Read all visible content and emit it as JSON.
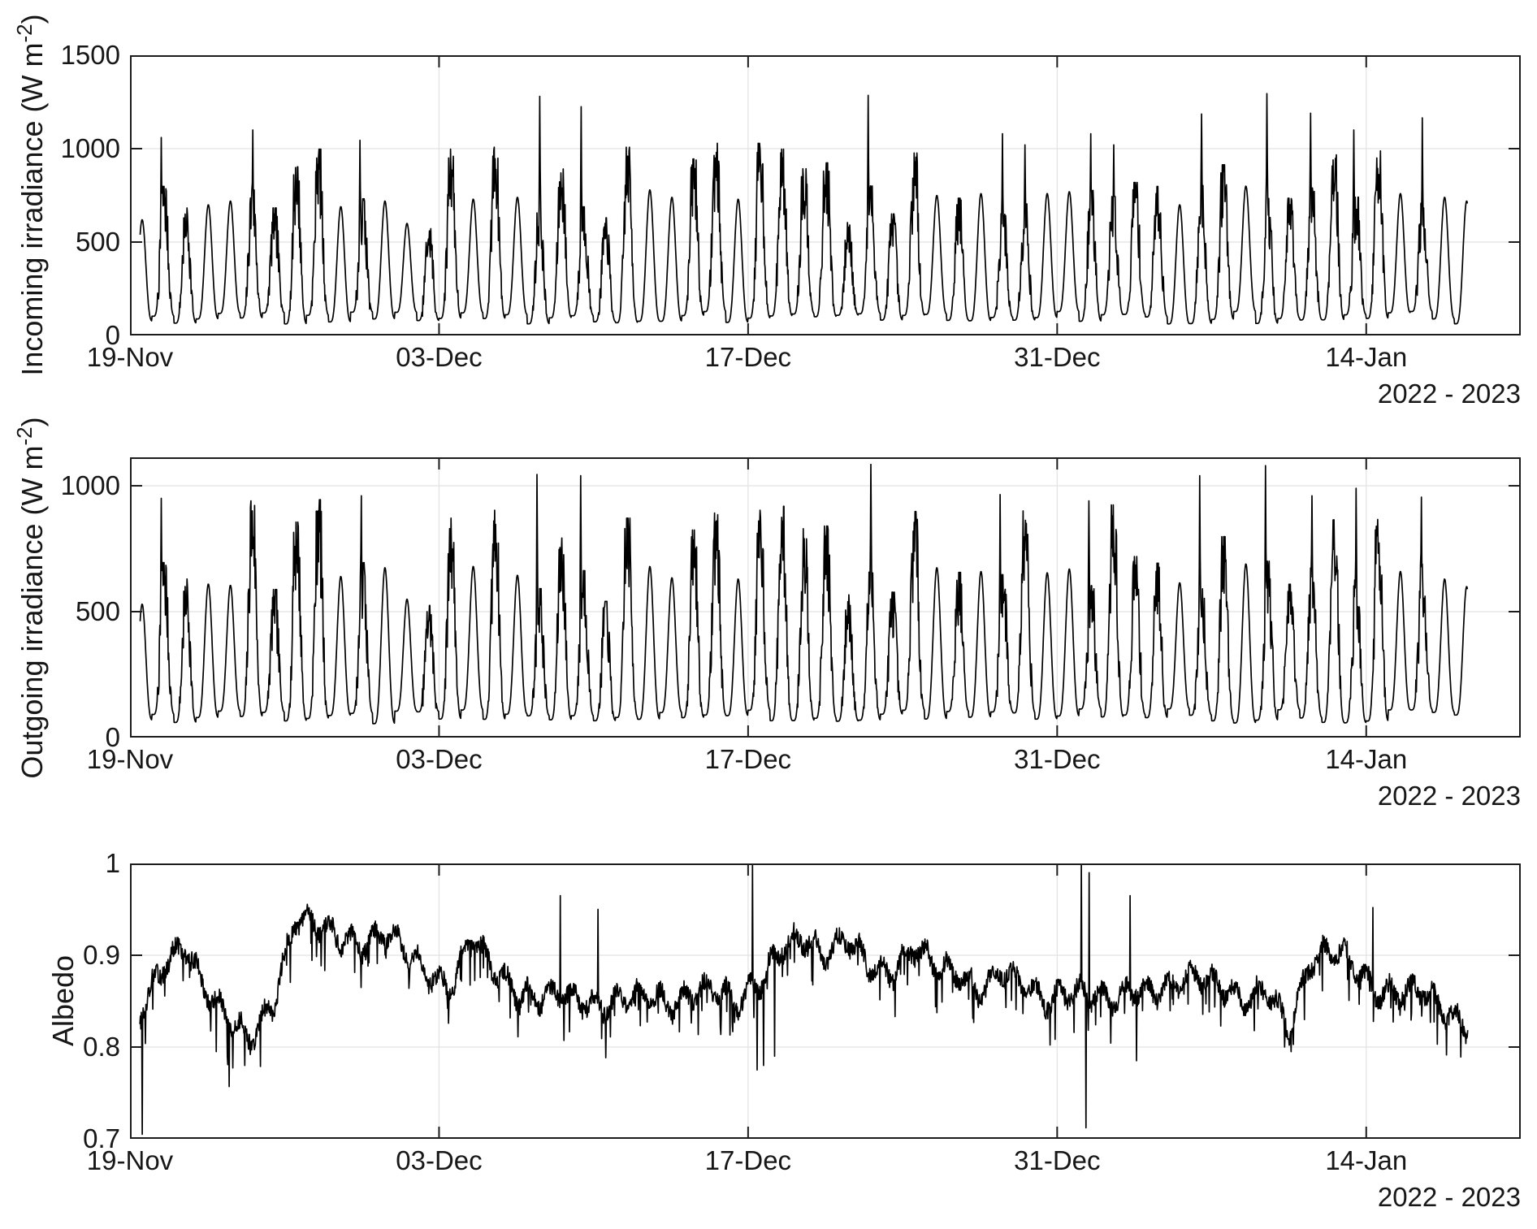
{
  "figure": {
    "background": "#ffffff",
    "axis_color": "#1c1c1c",
    "grid_color": "#e2e2e2",
    "line_color": "#000000",
    "text_color": "#171717"
  },
  "chart_data": [
    {
      "type": "line",
      "panel": "incoming-irradiance",
      "ylabel_prefix": "Incoming irradiance (W m",
      "ylabel_sup": "-2",
      "ylabel_suffix": ")",
      "xlabel_secondary": "2022 - 2023",
      "ylim": [
        0,
        1500
      ],
      "ytick_values": [
        0,
        500,
        1000,
        1500
      ],
      "ytick_labels": [
        "0",
        "500",
        "1000",
        "1500"
      ],
      "x_ticklabels": [
        "19-Nov",
        "03-Dec",
        "17-Dec",
        "31-Dec",
        "14-Jan"
      ],
      "x_tick_days": [
        0,
        14,
        28,
        42,
        56
      ],
      "xlim_days": [
        0,
        63
      ],
      "data_start_day": 0.45,
      "data_end_day": 60.6,
      "grid": true,
      "legend": "none",
      "diurnal_min_range_wm2": [
        60,
        130
      ],
      "daily_peak_wm2": [
        620,
        1060,
        650,
        700,
        720,
        1100,
        650,
        860,
        950,
        690,
        1045,
        720,
        600,
        560,
        950,
        730,
        960,
        740,
        1280,
        870,
        1225,
        600,
        960,
        780,
        740,
        900,
        980,
        730,
        980,
        950,
        850,
        880,
        580,
        1285,
        620,
        930,
        750,
        700,
        760,
        1080,
        1020,
        760,
        770,
        1080,
        1020,
        780,
        760,
        700,
        1185,
        870,
        800,
        1295,
        700,
        1190,
        940,
        1100,
        950,
        760,
        1165,
        740,
        720
      ],
      "cloudy_day": [
        0,
        1,
        1,
        0,
        0,
        1,
        1,
        1,
        1,
        0,
        1,
        0,
        0,
        1,
        1,
        0,
        1,
        0,
        1,
        1,
        1,
        1,
        1,
        0,
        0,
        1,
        1,
        0,
        1,
        1,
        1,
        1,
        1,
        1,
        1,
        1,
        0,
        1,
        0,
        1,
        1,
        0,
        0,
        1,
        1,
        1,
        1,
        0,
        1,
        1,
        0,
        1,
        1,
        1,
        1,
        1,
        1,
        0,
        1,
        0,
        0
      ]
    },
    {
      "type": "line",
      "panel": "outgoing-irradiance",
      "ylabel_prefix": "Outgoing irradiance (W m",
      "ylabel_sup": "-2",
      "ylabel_suffix": ")",
      "xlabel_secondary": "2022 - 2023",
      "ylim": [
        0,
        1113
      ],
      "ytick_values": [
        0,
        500,
        1000
      ],
      "ytick_labels": [
        "0",
        "500",
        "1000"
      ],
      "x_ticklabels": [
        "19-Nov",
        "03-Dec",
        "17-Dec",
        "31-Dec",
        "14-Jan"
      ],
      "x_tick_days": [
        0,
        14,
        28,
        42,
        56
      ],
      "xlim_days": [
        0,
        63
      ],
      "data_start_day": 0.45,
      "data_end_day": 60.6,
      "grid": true,
      "legend": "none",
      "diurnal_min_range_wm2": [
        55,
        115
      ],
      "daily_peak_wm2": [
        530,
        950,
        600,
        610,
        605,
        900,
        560,
        815,
        900,
        640,
        960,
        675,
        550,
        500,
        830,
        680,
        860,
        645,
        1045,
        755,
        1040,
        515,
        830,
        680,
        635,
        785,
        860,
        630,
        860,
        875,
        790,
        800,
        540,
        1085,
        550,
        855,
        675,
        625,
        660,
        965,
        900,
        655,
        670,
        940,
        880,
        685,
        660,
        615,
        1040,
        760,
        690,
        1080,
        580,
        960,
        865,
        990,
        825,
        660,
        955,
        630,
        600
      ],
      "cloudy_day": [
        0,
        1,
        1,
        0,
        0,
        1,
        1,
        1,
        1,
        0,
        1,
        0,
        0,
        1,
        1,
        0,
        1,
        0,
        1,
        1,
        1,
        1,
        1,
        0,
        0,
        1,
        1,
        0,
        1,
        1,
        1,
        1,
        1,
        1,
        1,
        1,
        0,
        1,
        0,
        1,
        1,
        0,
        0,
        1,
        1,
        1,
        1,
        0,
        1,
        1,
        0,
        1,
        1,
        1,
        1,
        1,
        1,
        0,
        1,
        0,
        0
      ],
      "first_value_wm2": 500
    },
    {
      "type": "line",
      "panel": "albedo",
      "ylabel_prefix": "Albedo",
      "ylabel_sup": "",
      "ylabel_suffix": "",
      "xlabel_secondary": "2022 - 2023",
      "ylim": [
        0.7,
        1.0
      ],
      "ytick_values": [
        0.7,
        0.8,
        0.9,
        1.0
      ],
      "ytick_labels": [
        "0.7",
        "0.8",
        "0.9",
        "1"
      ],
      "x_ticklabels": [
        "19-Nov",
        "03-Dec",
        "17-Dec",
        "31-Dec",
        "14-Jan"
      ],
      "x_tick_days": [
        0,
        14,
        28,
        42,
        56
      ],
      "xlim_days": [
        0,
        63
      ],
      "data_start_day": 0.45,
      "data_end_day": 60.6,
      "grid": true,
      "legend": "none",
      "daily_mean": [
        0.85,
        0.9,
        0.92,
        0.87,
        0.84,
        0.82,
        0.86,
        0.95,
        0.945,
        0.93,
        0.92,
        0.935,
        0.92,
        0.89,
        0.875,
        0.93,
        0.895,
        0.87,
        0.865,
        0.87,
        0.86,
        0.855,
        0.865,
        0.87,
        0.855,
        0.87,
        0.875,
        0.86,
        0.88,
        0.92,
        0.93,
        0.91,
        0.93,
        0.9,
        0.89,
        0.92,
        0.9,
        0.89,
        0.87,
        0.895,
        0.88,
        0.86,
        0.87,
        0.87,
        0.86,
        0.875,
        0.87,
        0.88,
        0.89,
        0.875,
        0.86,
        0.875,
        0.83,
        0.905,
        0.92,
        0.9,
        0.87,
        0.87,
        0.875,
        0.85,
        0.835
      ],
      "spikes": [
        {
          "day": 0.55,
          "value": 0.705
        },
        {
          "day": 3.9,
          "value": 0.795
        },
        {
          "day": 4.5,
          "value": 0.757
        },
        {
          "day": 5.2,
          "value": 0.78
        },
        {
          "day": 19.5,
          "value": 0.965
        },
        {
          "day": 21.2,
          "value": 0.95
        },
        {
          "day": 28.2,
          "value": 1.0
        },
        {
          "day": 28.4,
          "value": 0.775
        },
        {
          "day": 28.7,
          "value": 0.78
        },
        {
          "day": 29.2,
          "value": 0.79
        },
        {
          "day": 43.1,
          "value": 1.0
        },
        {
          "day": 43.3,
          "value": 0.712
        },
        {
          "day": 43.45,
          "value": 0.99
        },
        {
          "day": 45.3,
          "value": 0.965
        },
        {
          "day": 45.6,
          "value": 0.785
        },
        {
          "day": 52.3,
          "value": 0.8
        },
        {
          "day": 52.6,
          "value": 0.795
        },
        {
          "day": 56.3,
          "value": 0.952
        }
      ]
    }
  ]
}
